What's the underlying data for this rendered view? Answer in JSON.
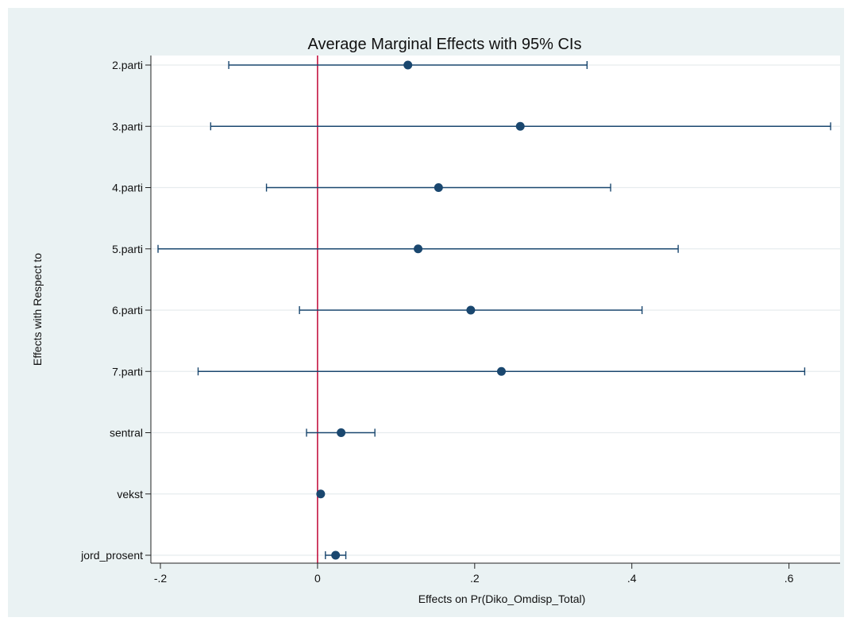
{
  "chart_data": {
    "type": "scatter",
    "title": "Average Marginal Effects with 95% CIs",
    "xlabel": "Effects on Pr(Diko_Omdisp_Total)",
    "ylabel": "Effects with Respect to",
    "xlim": [
      -0.2,
      0.66
    ],
    "x_ticks": [
      -0.2,
      0,
      0.2,
      0.4,
      0.6
    ],
    "x_tick_labels": [
      "-.2",
      "0",
      ".2",
      ".4",
      ".6"
    ],
    "grid": true,
    "reference_line": 0,
    "categories": [
      "2.parti",
      "3.parti",
      "4.parti",
      "5.parti",
      "6.parti",
      "7.parti",
      "sentral",
      "vekst",
      "jord_prosent"
    ],
    "estimates": [
      0.115,
      0.258,
      0.154,
      0.128,
      0.195,
      0.234,
      0.03,
      0.004,
      0.023
    ],
    "ci_low": [
      -0.113,
      -0.136,
      -0.065,
      -0.203,
      -0.023,
      -0.152,
      -0.014,
      0.004,
      0.01
    ],
    "ci_high": [
      0.343,
      0.653,
      0.373,
      0.459,
      0.413,
      0.62,
      0.073,
      0.004,
      0.036
    ],
    "colors": {
      "frame_bg": "#eaf2f3",
      "plot_bg": "#ffffff",
      "grid": "#e6ecee",
      "marker": "#1a476f",
      "ref_line": "#c10534",
      "text": "#111111"
    }
  }
}
